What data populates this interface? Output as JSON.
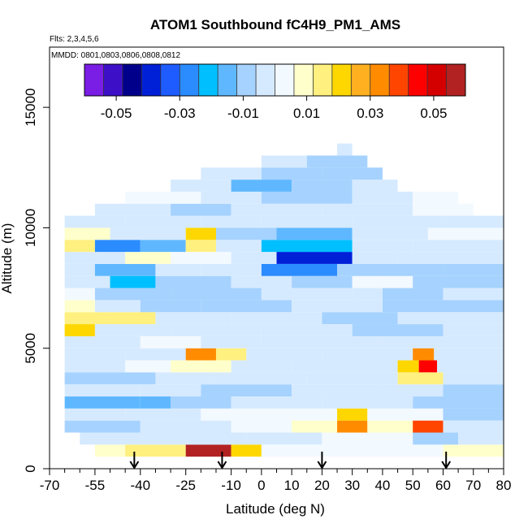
{
  "chart_data": {
    "type": "heatmap",
    "title": "ATOM1 Southbound fC4H9_PM1_AMS",
    "flights_label": "Flts: 2,3,4,5,6",
    "dates_label": "MMDD: 0801,0803,0806,0808,0812",
    "xlabel": "Latitude (deg N)",
    "ylabel": "Altitude (m)",
    "xlim": [
      -70,
      80
    ],
    "ylim": [
      0,
      17500
    ],
    "x_ticks_major": [
      -70,
      -55,
      -40,
      -25,
      -10,
      0,
      10,
      20,
      30,
      40,
      50,
      60,
      70,
      80
    ],
    "x_ticks_minor": [
      -65,
      -60,
      -50,
      -45,
      -35,
      -30,
      -20,
      -15,
      -5,
      5,
      15,
      25,
      35,
      45,
      55,
      65,
      75
    ],
    "y_ticks": [
      0,
      5000,
      10000,
      15000
    ],
    "colorbar": {
      "min": -0.06,
      "max": 0.06,
      "tick_values": [
        -0.05,
        -0.03,
        -0.01,
        0.01,
        0.03,
        0.05
      ],
      "tick_labels": [
        "-0.05",
        "-0.03",
        "-0.01",
        "0.01",
        "0.03",
        "0.05"
      ],
      "colors": [
        "#7a1ee6",
        "#3d10c8",
        "#00008b",
        "#0020d8",
        "#1e5cff",
        "#2b8cff",
        "#00bfff",
        "#5fb8ff",
        "#a6d2ff",
        "#d6eaff",
        "#f2f9ff",
        "#ffffcc",
        "#fff080",
        "#ffd700",
        "#ffb020",
        "#ff8c00",
        "#ff4500",
        "#ff0000",
        "#d40000",
        "#b22222"
      ]
    },
    "arrow_latitudes": [
      -42,
      -13,
      20,
      61
    ],
    "bands": [
      {
        "alt": [
          500,
          1000
        ],
        "lat": [
          -55,
          80
        ],
        "segments": [
          [
            -55,
            -45,
            0.008
          ],
          [
            -45,
            -25,
            0.015
          ],
          [
            -25,
            -10,
            0.055
          ],
          [
            -10,
            0,
            0.018
          ],
          [
            0,
            20,
            0.004
          ],
          [
            20,
            60,
            0.002
          ],
          [
            60,
            80,
            0.006
          ]
        ]
      },
      {
        "alt": [
          1000,
          1500
        ],
        "lat": [
          -60,
          80
        ],
        "segments": [
          [
            -60,
            -35,
            -0.004
          ],
          [
            -35,
            -5,
            -0.006
          ],
          [
            -5,
            20,
            -0.002
          ],
          [
            20,
            50,
            0.001
          ],
          [
            50,
            65,
            -0.008
          ],
          [
            65,
            80,
            -0.006
          ]
        ]
      },
      {
        "alt": [
          1500,
          2000
        ],
        "lat": [
          -65,
          80
        ],
        "segments": [
          [
            -65,
            -40,
            -0.008
          ],
          [
            -40,
            -10,
            -0.004
          ],
          [
            -10,
            10,
            0.003
          ],
          [
            10,
            25,
            0.006
          ],
          [
            25,
            35,
            0.032
          ],
          [
            35,
            50,
            0.006
          ],
          [
            50,
            60,
            0.038
          ],
          [
            60,
            80,
            -0.004
          ]
        ]
      },
      {
        "alt": [
          2000,
          2500
        ],
        "lat": [
          -65,
          80
        ],
        "segments": [
          [
            -65,
            -45,
            -0.006
          ],
          [
            -45,
            -20,
            -0.002
          ],
          [
            -20,
            0,
            0.004
          ],
          [
            0,
            25,
            0.005
          ],
          [
            25,
            35,
            0.02
          ],
          [
            35,
            60,
            0.004
          ],
          [
            60,
            80,
            -0.01
          ]
        ]
      },
      {
        "alt": [
          2500,
          3000
        ],
        "lat": [
          -65,
          80
        ],
        "segments": [
          [
            -65,
            -40,
            -0.014
          ],
          [
            -40,
            -30,
            -0.018
          ],
          [
            -30,
            -10,
            -0.01
          ],
          [
            -10,
            20,
            -0.006
          ],
          [
            20,
            50,
            -0.004
          ],
          [
            50,
            80,
            -0.012
          ]
        ]
      },
      {
        "alt": [
          3000,
          3500
        ],
        "lat": [
          -65,
          80
        ],
        "segments": [
          [
            -65,
            -40,
            -0.006
          ],
          [
            -40,
            -20,
            -0.004
          ],
          [
            -20,
            10,
            -0.008
          ],
          [
            10,
            40,
            -0.004
          ],
          [
            40,
            60,
            -0.006
          ],
          [
            60,
            80,
            -0.01
          ]
        ]
      },
      {
        "alt": [
          3500,
          4000
        ],
        "lat": [
          -65,
          80
        ],
        "segments": [
          [
            -65,
            -35,
            -0.01
          ],
          [
            -35,
            -15,
            -0.006
          ],
          [
            -15,
            15,
            -0.004
          ],
          [
            15,
            45,
            -0.002
          ],
          [
            45,
            60,
            0.012
          ],
          [
            60,
            80,
            -0.006
          ]
        ]
      },
      {
        "alt": [
          4000,
          4500
        ],
        "lat": [
          -65,
          80
        ],
        "segments": [
          [
            -65,
            -45,
            -0.004
          ],
          [
            -45,
            -30,
            0.004
          ],
          [
            -30,
            -20,
            0.006
          ],
          [
            -20,
            -10,
            0.01
          ],
          [
            -10,
            10,
            -0.002
          ],
          [
            10,
            45,
            -0.004
          ],
          [
            45,
            52,
            0.02
          ],
          [
            52,
            58,
            0.045
          ],
          [
            58,
            80,
            -0.006
          ]
        ]
      },
      {
        "alt": [
          4500,
          5000
        ],
        "lat": [
          -65,
          80
        ],
        "segments": [
          [
            -65,
            -45,
            -0.004
          ],
          [
            -45,
            -25,
            -0.002
          ],
          [
            -25,
            -15,
            0.03
          ],
          [
            -15,
            -5,
            0.012
          ],
          [
            -5,
            20,
            -0.004
          ],
          [
            20,
            40,
            -0.006
          ],
          [
            40,
            50,
            -0.004
          ],
          [
            50,
            57,
            0.03
          ],
          [
            57,
            80,
            -0.004
          ]
        ]
      },
      {
        "alt": [
          5000,
          5500
        ],
        "lat": [
          -65,
          80
        ],
        "segments": [
          [
            -65,
            -40,
            -0.002
          ],
          [
            -40,
            -20,
            0.004
          ],
          [
            -20,
            0,
            -0.002
          ],
          [
            0,
            40,
            -0.006
          ],
          [
            40,
            80,
            -0.004
          ]
        ]
      },
      {
        "alt": [
          5500,
          6000
        ],
        "lat": [
          -65,
          80
        ],
        "segments": [
          [
            -65,
            -55,
            0.018
          ],
          [
            -55,
            -30,
            -0.004
          ],
          [
            -30,
            0,
            -0.004
          ],
          [
            0,
            30,
            -0.006
          ],
          [
            30,
            60,
            -0.008
          ],
          [
            60,
            80,
            -0.004
          ]
        ]
      },
      {
        "alt": [
          6000,
          6500
        ],
        "lat": [
          -65,
          80
        ],
        "segments": [
          [
            -65,
            -50,
            0.016
          ],
          [
            -50,
            -35,
            0.012
          ],
          [
            -35,
            -10,
            -0.006
          ],
          [
            -10,
            20,
            -0.004
          ],
          [
            20,
            45,
            -0.008
          ],
          [
            45,
            80,
            -0.006
          ]
        ]
      },
      {
        "alt": [
          6500,
          7000
        ],
        "lat": [
          -65,
          80
        ],
        "segments": [
          [
            -65,
            -55,
            0.008
          ],
          [
            -55,
            -40,
            -0.006
          ],
          [
            -40,
            -20,
            -0.01
          ],
          [
            -20,
            10,
            -0.008
          ],
          [
            10,
            40,
            -0.004
          ],
          [
            40,
            80,
            -0.008
          ]
        ]
      },
      {
        "alt": [
          7000,
          7500
        ],
        "lat": [
          -65,
          80
        ],
        "segments": [
          [
            -65,
            -55,
            0.002
          ],
          [
            -55,
            -30,
            -0.012
          ],
          [
            -30,
            0,
            -0.008
          ],
          [
            0,
            30,
            -0.004
          ],
          [
            30,
            40,
            -0.006
          ],
          [
            40,
            60,
            -0.012
          ],
          [
            60,
            80,
            -0.006
          ]
        ]
      },
      {
        "alt": [
          7500,
          8000
        ],
        "lat": [
          -65,
          80
        ],
        "segments": [
          [
            -65,
            -50,
            -0.004
          ],
          [
            -50,
            -35,
            -0.02
          ],
          [
            -35,
            -10,
            -0.012
          ],
          [
            -10,
            10,
            -0.006
          ],
          [
            10,
            30,
            -0.01
          ],
          [
            30,
            50,
            0.004
          ],
          [
            50,
            80,
            -0.01
          ]
        ]
      },
      {
        "alt": [
          8000,
          8500
        ],
        "lat": [
          -65,
          80
        ],
        "segments": [
          [
            -65,
            -55,
            -0.006
          ],
          [
            -55,
            -35,
            -0.016
          ],
          [
            -35,
            -20,
            -0.006
          ],
          [
            -20,
            0,
            -0.004
          ],
          [
            0,
            25,
            -0.03
          ],
          [
            25,
            40,
            -0.012
          ],
          [
            40,
            60,
            -0.01
          ],
          [
            60,
            80,
            -0.008
          ]
        ]
      },
      {
        "alt": [
          8500,
          9000
        ],
        "lat": [
          -65,
          80
        ],
        "segments": [
          [
            -65,
            -45,
            -0.004
          ],
          [
            -45,
            -30,
            0.006
          ],
          [
            -30,
            -10,
            0.004
          ],
          [
            -10,
            5,
            -0.006
          ],
          [
            5,
            30,
            -0.038
          ],
          [
            30,
            45,
            -0.006
          ],
          [
            45,
            80,
            -0.004
          ]
        ]
      },
      {
        "alt": [
          9000,
          9500
        ],
        "lat": [
          -65,
          80
        ],
        "segments": [
          [
            -65,
            -55,
            0.012
          ],
          [
            -55,
            -40,
            -0.03
          ],
          [
            -40,
            -25,
            -0.018
          ],
          [
            -25,
            -15,
            0.016
          ],
          [
            -15,
            0,
            -0.006
          ],
          [
            0,
            30,
            -0.024
          ],
          [
            30,
            50,
            -0.006
          ],
          [
            50,
            80,
            -0.004
          ]
        ]
      },
      {
        "alt": [
          9500,
          10000
        ],
        "lat": [
          -65,
          80
        ],
        "segments": [
          [
            -65,
            -50,
            0.006
          ],
          [
            -50,
            -25,
            -0.004
          ],
          [
            -25,
            -15,
            0.02
          ],
          [
            -15,
            5,
            -0.012
          ],
          [
            5,
            30,
            -0.016
          ],
          [
            30,
            55,
            -0.004
          ],
          [
            55,
            80,
            0.002
          ]
        ]
      },
      {
        "alt": [
          10000,
          10500
        ],
        "lat": [
          -65,
          80
        ],
        "segments": [
          [
            -65,
            -45,
            -0.002
          ],
          [
            -45,
            -20,
            -0.006
          ],
          [
            -20,
            0,
            -0.004
          ],
          [
            0,
            30,
            -0.006
          ],
          [
            30,
            60,
            -0.002
          ],
          [
            60,
            80,
            -0.004
          ]
        ]
      },
      {
        "alt": [
          10500,
          11000
        ],
        "lat": [
          -55,
          70
        ],
        "segments": [
          [
            -55,
            -30,
            -0.004
          ],
          [
            -30,
            -10,
            -0.01
          ],
          [
            -10,
            20,
            -0.006
          ],
          [
            20,
            50,
            -0.004
          ],
          [
            50,
            70,
            0.002
          ]
        ]
      },
      {
        "alt": [
          11000,
          11500
        ],
        "lat": [
          -45,
          65
        ],
        "segments": [
          [
            -45,
            -20,
            0.002
          ],
          [
            -20,
            0,
            -0.004
          ],
          [
            0,
            30,
            -0.008
          ],
          [
            30,
            50,
            -0.006
          ],
          [
            50,
            65,
            0.004
          ]
        ]
      },
      {
        "alt": [
          11500,
          12000
        ],
        "lat": [
          -30,
          45
        ],
        "segments": [
          [
            -30,
            -10,
            -0.004
          ],
          [
            -10,
            10,
            -0.014
          ],
          [
            10,
            30,
            -0.012
          ],
          [
            30,
            45,
            -0.006
          ]
        ]
      },
      {
        "alt": [
          12000,
          12500
        ],
        "lat": [
          -20,
          40
        ],
        "segments": [
          [
            -20,
            0,
            -0.004
          ],
          [
            0,
            20,
            -0.008
          ],
          [
            20,
            40,
            -0.01
          ]
        ]
      },
      {
        "alt": [
          12500,
          13000
        ],
        "lat": [
          0,
          35
        ],
        "segments": [
          [
            0,
            15,
            -0.006
          ],
          [
            15,
            25,
            -0.008
          ],
          [
            25,
            35,
            -0.01
          ]
        ]
      },
      {
        "alt": [
          13000,
          13500
        ],
        "lat": [
          25,
          30
        ],
        "segments": [
          [
            25,
            30,
            -0.006
          ]
        ]
      }
    ]
  }
}
